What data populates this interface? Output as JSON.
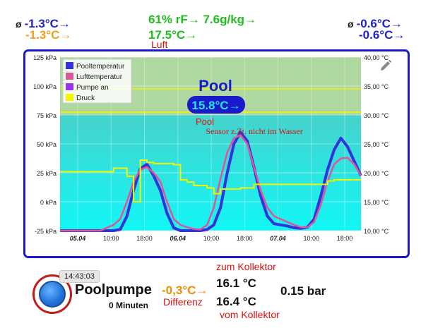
{
  "header": {
    "left_line1_symbol": "ø",
    "left_line1": "-1.3°C→",
    "left_line2": "-1.3°C→",
    "mid_line1": "61% rF→ 7.6g/kg→",
    "mid_line2": "17.5°C→",
    "mid_label": "Luft",
    "right_line1_symbol": "ø",
    "right_line1": "-0.6°C→",
    "right_line2": "-0.6°C→"
  },
  "chart_data": {
    "type": "line",
    "left_axis": {
      "unit": "kPa",
      "min": -25,
      "max": 125,
      "ticks": [
        "125 kPa",
        "100 kPa",
        "75 kPa",
        "50 kPa",
        "25 kPa",
        "0 kPa",
        "-25 kPa"
      ]
    },
    "right_axis": {
      "unit": "°C",
      "min": 10,
      "max": 40,
      "ticks": [
        "40,00 °C",
        "35,00 °C",
        "30,00 °C",
        "25,00 °C",
        "20,00 °C",
        "15,00 °C",
        "10,00 °C"
      ]
    },
    "x_ticks": [
      "05.04",
      "10:00",
      "18:00",
      "06.04",
      "10:00",
      "18:00",
      "07.04",
      "10:00",
      "18:00"
    ],
    "x_ticks_bold": [
      true,
      false,
      false,
      true,
      false,
      false,
      true,
      false,
      false
    ],
    "legend": [
      {
        "name": "Pooltemperatur",
        "color": "#3333dd"
      },
      {
        "name": "Lufttemperatur",
        "color": "#e0559a"
      },
      {
        "name": "Pumpe an",
        "color": "#9933ee"
      },
      {
        "name": "Druck",
        "color": "#f5f500"
      }
    ],
    "bands": [
      {
        "from_c": 30,
        "to_c": 40,
        "color": "#aed8a0"
      },
      {
        "from_c": 10,
        "to_c": 30,
        "color_top": "#46d2cc",
        "color_bottom": "#12f6f6"
      }
    ],
    "threshold_lines_c": [
      34.5,
      30.5
    ],
    "series": [
      {
        "name": "Pooltemperatur",
        "values_c": [
          10,
          10,
          10,
          10,
          10,
          10,
          10,
          10,
          10,
          10.2,
          12.5,
          17,
          20.7,
          21.5,
          19.5,
          17,
          13,
          10.5,
          10,
          10,
          10,
          10,
          10.2,
          11,
          14,
          20,
          25,
          27,
          25.5,
          21,
          16,
          12.5,
          11.2,
          11,
          10.8,
          10.5,
          10.4,
          10.6,
          12,
          16,
          20.5,
          24,
          26,
          24.5,
          22,
          19.5
        ]
      },
      {
        "name": "Lufttemperatur",
        "values_c": [
          10,
          10,
          10,
          10,
          10,
          10,
          10,
          10.5,
          11,
          12,
          15,
          18.5,
          20.5,
          21,
          20,
          18.5,
          15,
          12,
          11,
          10.6,
          10.3,
          10.2,
          11,
          14,
          19,
          23.5,
          26,
          26.5,
          25,
          21,
          17,
          14,
          12.5,
          12,
          11.5,
          11,
          10.6,
          10.6,
          11.5,
          14.5,
          18.5,
          21.5,
          22.5,
          22.6,
          21.5,
          19.5
        ]
      },
      {
        "name": "Druck",
        "values_kpa": [
          26,
          26,
          26,
          26,
          26,
          26,
          26,
          26,
          29,
          29,
          22,
          0,
          36,
          34,
          33,
          33,
          33,
          32,
          19,
          17,
          14,
          14,
          12,
          7,
          11,
          11,
          11,
          12,
          12,
          15,
          15,
          15,
          15,
          15,
          15,
          15,
          15,
          15,
          15,
          15,
          18,
          19,
          19,
          19,
          19,
          19
        ]
      }
    ],
    "overlay": {
      "title": "Pool",
      "badge": "15.8°C→",
      "sub1": "Pool",
      "sub2": "Sensor z.Zt. nicht im Wasser"
    }
  },
  "pump": {
    "time": "14:43:03",
    "name": "Poolpumpe",
    "duration": "0 Minuten",
    "diff_value": "-0,3°C→",
    "diff_label": "Differenz",
    "to_collector_label": "zum Kollektor",
    "to_collector_value": "16.1 °C",
    "from_collector_value": "16.4 °C",
    "from_collector_label": "vom Kollektor",
    "pressure": "0.15 bar"
  }
}
